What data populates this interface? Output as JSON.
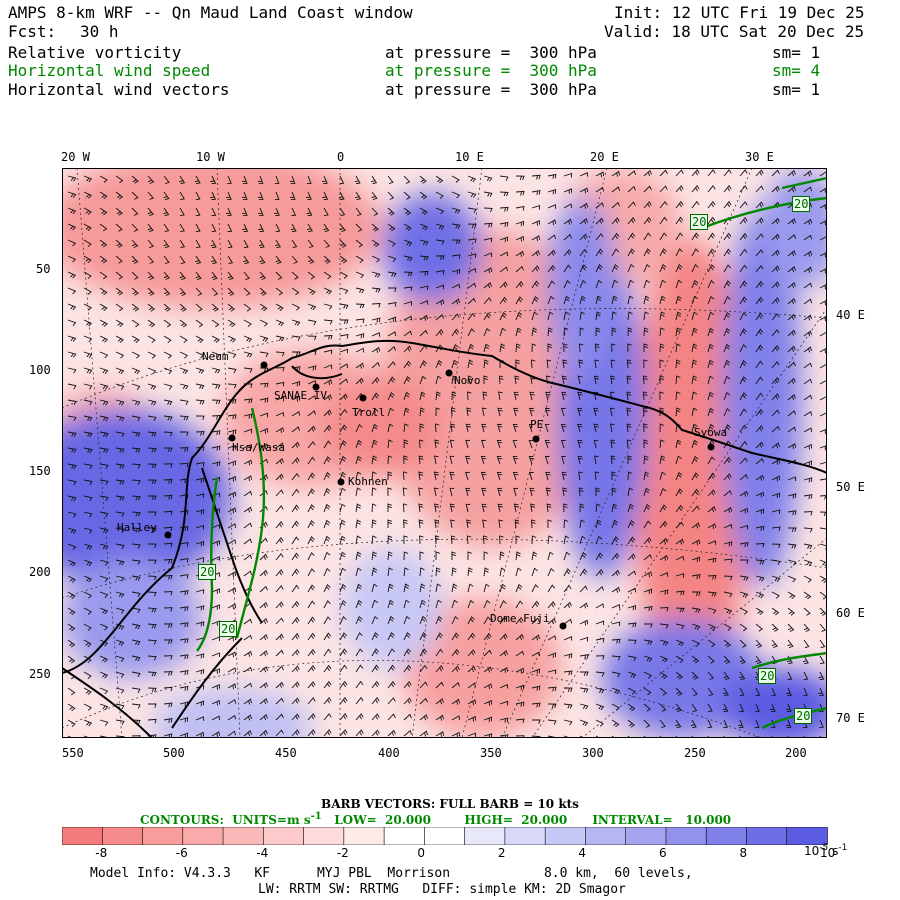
{
  "header": {
    "title": "AMPS 8-km WRF -- Qn Maud Land Coast window",
    "init": "Init: 12 UTC Fri 19 Dec 25",
    "fcst_label": "Fcst:",
    "fcst_value": "30 h",
    "valid": "Valid: 18 UTC Sat 20 Dec 25"
  },
  "fields": [
    {
      "name": "Relative vorticity",
      "pressure": "at pressure =  300 hPa",
      "sm": "sm= 1",
      "color": "#000000"
    },
    {
      "name": "Horizontal wind speed",
      "pressure": "at pressure =  300 hPa",
      "sm": "sm= 4",
      "color": "#008800"
    },
    {
      "name": "Horizontal wind vectors",
      "pressure": "at pressure =  300 hPa",
      "sm": "sm= 1",
      "color": "#000000"
    }
  ],
  "axes": {
    "top_lon": [
      "20 W",
      "10 W",
      "0",
      "10 E",
      "20 E",
      "30 E"
    ],
    "right_lon": [
      "40 E",
      "50 E",
      "60 E",
      "70 E"
    ],
    "left_y": [
      "50",
      "100",
      "150",
      "200",
      "250"
    ],
    "bottom_x": [
      "550",
      "500",
      "450",
      "400",
      "350",
      "300",
      "250",
      "200"
    ]
  },
  "stations": [
    {
      "label": "Neum"
    },
    {
      "label": "SANAE IV"
    },
    {
      "label": "Troll"
    },
    {
      "label": "Novo"
    },
    {
      "label": "PE"
    },
    {
      "label": "Syowa"
    },
    {
      "label": "Hsa/Wasa"
    },
    {
      "label": "Kohnen"
    },
    {
      "label": "Halley"
    },
    {
      "label": "Dome Fuji"
    }
  ],
  "contour_labels": [
    "20",
    "20",
    "20",
    "20",
    "20",
    "20"
  ],
  "barb_note": "BARB VECTORS:  FULL BARB = 10 kts",
  "contours": {
    "units_label": "CONTOURS:  UNITS=m s",
    "units_sup": "-1",
    "low": "LOW=  20.000",
    "high": "HIGH=  20.000",
    "interval": "INTERVAL=   10.000"
  },
  "colorbar": {
    "ticks": [
      "-8",
      "-6",
      "-4",
      "-2",
      "0",
      "2",
      "4",
      "6",
      "8",
      "10"
    ],
    "unit_base": "10",
    "unit_exp": "-5",
    "unit_rest": " s",
    "unit_rest_exp": "-1",
    "colors": [
      "#f47a7a",
      "#f68b8b",
      "#f89c9c",
      "#faaaaa",
      "#fbbaba",
      "#fccaca",
      "#fedada",
      "#ffeaea",
      "#ffffff",
      "#ffffff",
      "#e8e8fb",
      "#d8d8f8",
      "#c8c8f6",
      "#b6b6f3",
      "#a4a4f0",
      "#9292ec",
      "#8080e9",
      "#6e6ee6",
      "#5c5ce3"
    ]
  },
  "footer": {
    "line1": "Model Info: V4.3.3   KF      MYJ PBL  Morrison            8.0 km,  60 levels,",
    "line2": "LW: RRTM SW: RRTMG   DIFF: simple KM: 2D Smagor"
  },
  "colors": {
    "positive_vort": "#f47a7a",
    "negative_vort": "#6262e4",
    "wind_contour": "#008800",
    "coast": "#000000"
  }
}
